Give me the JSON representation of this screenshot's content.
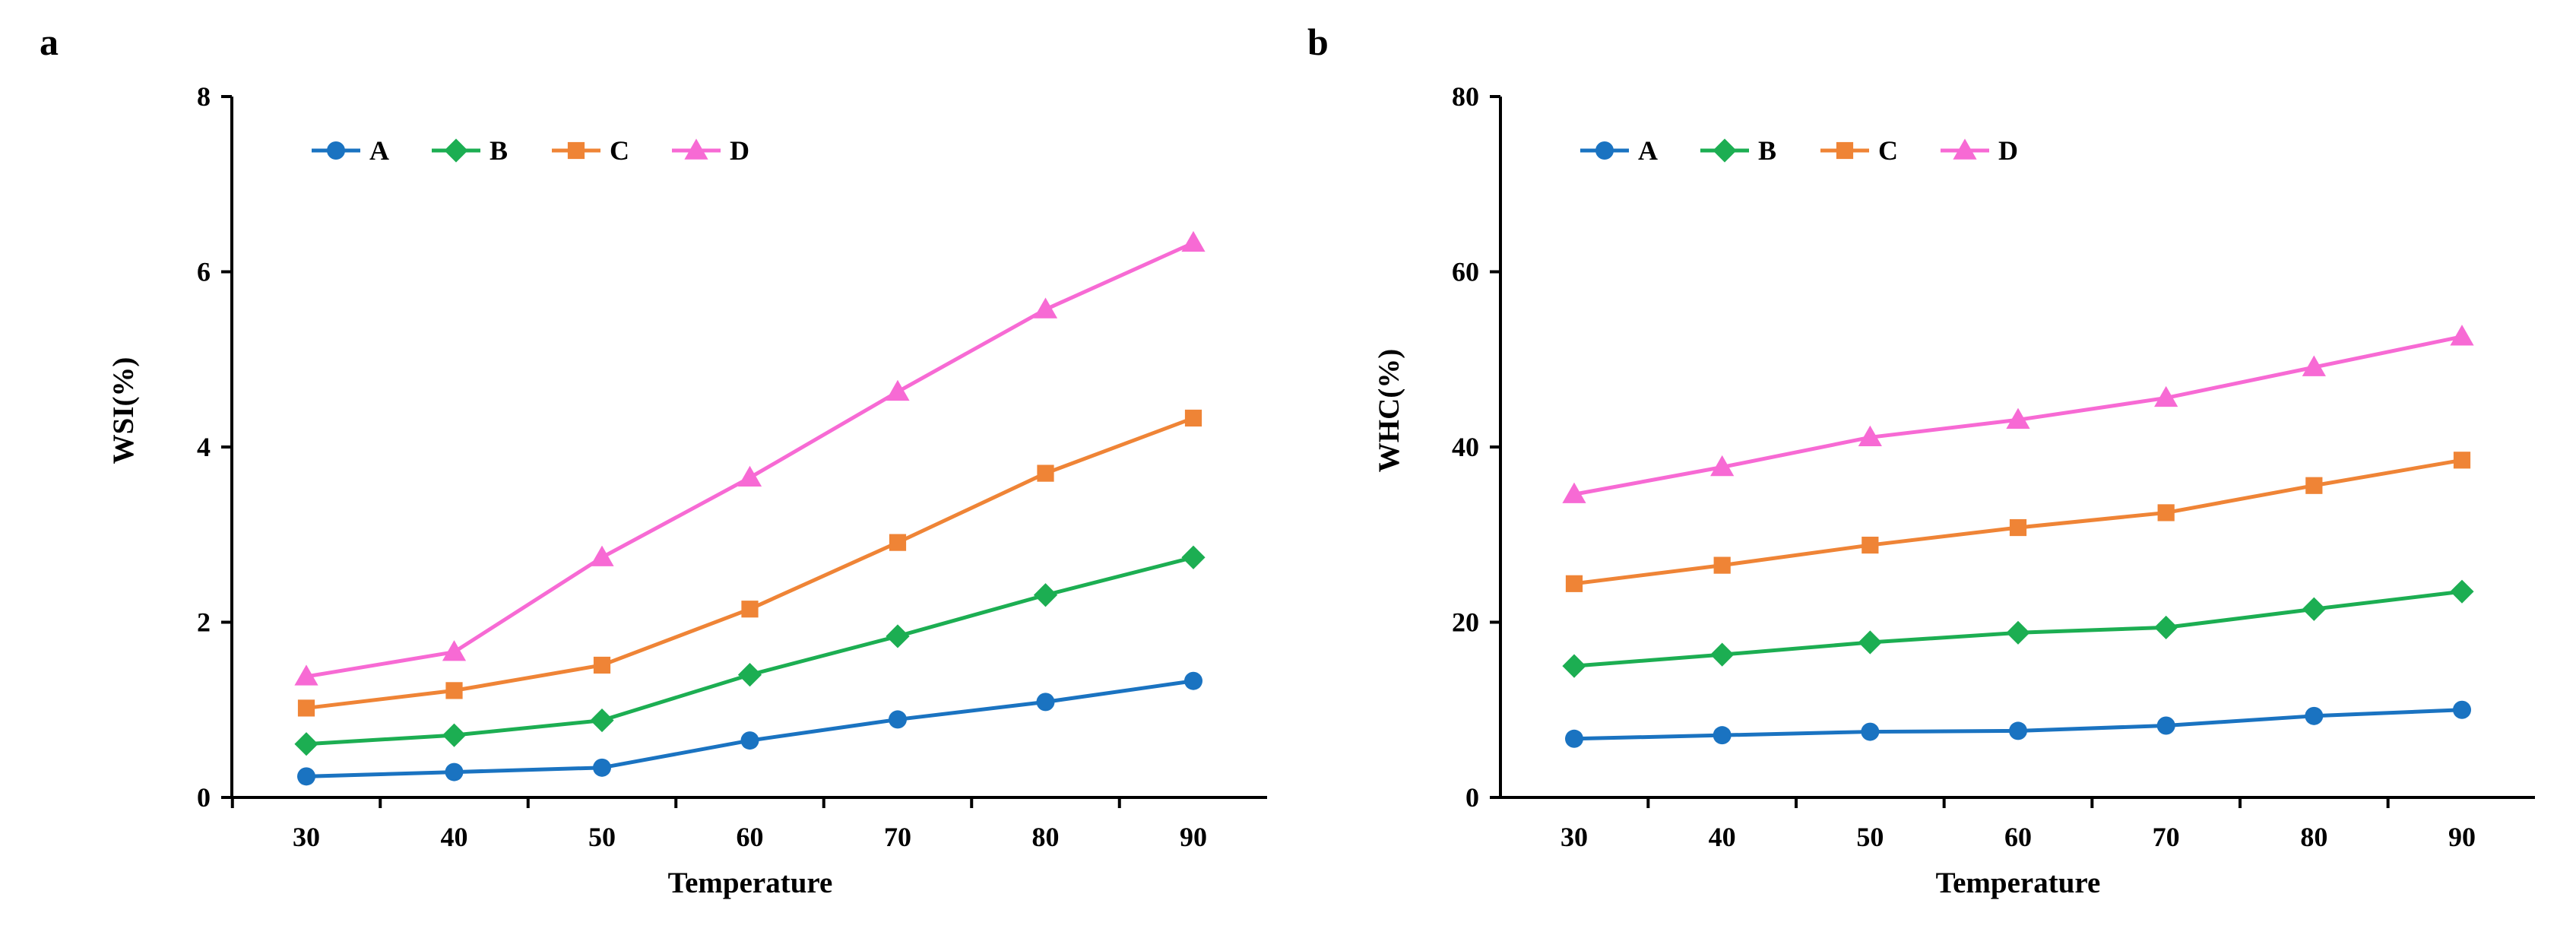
{
  "figure": {
    "panels": [
      "a",
      "b"
    ]
  },
  "chart_data": [
    {
      "panel_label": "a",
      "type": "line",
      "xlabel": "Temperature",
      "ylabel": "WSI(%)",
      "x": [
        30,
        40,
        50,
        60,
        70,
        80,
        90
      ],
      "ylim": [
        0,
        8
      ],
      "yticks": [
        0,
        2,
        4,
        6,
        8
      ],
      "grid": false,
      "legend_position": "top-left",
      "series": [
        {
          "name": "A",
          "color": "#1a73c1",
          "marker": "circle",
          "values": [
            0.24,
            0.29,
            0.34,
            0.65,
            0.89,
            1.09,
            1.33
          ]
        },
        {
          "name": "B",
          "color": "#1cae52",
          "marker": "diamond",
          "values": [
            0.61,
            0.71,
            0.88,
            1.4,
            1.84,
            2.31,
            2.74
          ]
        },
        {
          "name": "C",
          "color": "#ef8436",
          "marker": "square",
          "values": [
            1.02,
            1.22,
            1.51,
            2.15,
            2.91,
            3.7,
            4.33
          ]
        },
        {
          "name": "D",
          "color": "#f76ad4",
          "marker": "triangle",
          "values": [
            1.38,
            1.66,
            2.74,
            3.65,
            4.63,
            5.57,
            6.33
          ]
        }
      ]
    },
    {
      "panel_label": "b",
      "type": "line",
      "xlabel": "Temperature",
      "ylabel": "WHC(%)",
      "x": [
        30,
        40,
        50,
        60,
        70,
        80,
        90
      ],
      "ylim": [
        0,
        80
      ],
      "yticks": [
        0,
        20,
        40,
        60,
        80
      ],
      "grid": false,
      "legend_position": "top-left",
      "series": [
        {
          "name": "A",
          "color": "#1a73c1",
          "marker": "circle",
          "values": [
            6.7,
            7.1,
            7.5,
            7.6,
            8.2,
            9.3,
            10.0
          ]
        },
        {
          "name": "B",
          "color": "#1cae52",
          "marker": "diamond",
          "values": [
            15.0,
            16.3,
            17.7,
            18.8,
            19.4,
            21.5,
            23.5
          ]
        },
        {
          "name": "C",
          "color": "#ef8436",
          "marker": "square",
          "values": [
            24.4,
            26.5,
            28.8,
            30.8,
            32.5,
            35.6,
            38.5
          ]
        },
        {
          "name": "D",
          "color": "#f76ad4",
          "marker": "triangle",
          "values": [
            34.6,
            37.7,
            41.1,
            43.1,
            45.6,
            49.1,
            52.6
          ]
        }
      ]
    }
  ]
}
